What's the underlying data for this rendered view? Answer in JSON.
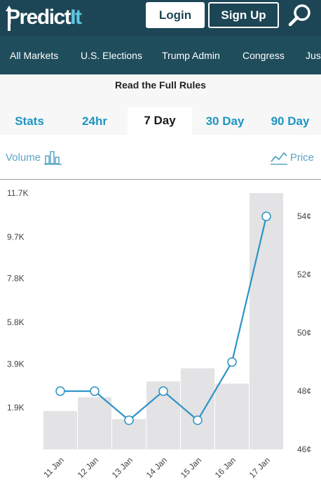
{
  "header": {
    "logo_main": "Predict",
    "logo_accent": "It",
    "login_label": "Login",
    "signup_label": "Sign Up",
    "search_icon": "search-icon"
  },
  "nav": {
    "items": [
      "All Markets",
      "U.S. Elections",
      "Trump Admin",
      "Congress",
      "Jus"
    ]
  },
  "rules": {
    "label": "Read the Full Rules"
  },
  "tabs": {
    "items": [
      "Stats",
      "24hr",
      "7 Day",
      "30 Day",
      "90 Day"
    ],
    "active": "7 Day"
  },
  "legend": {
    "volume_label": "Volume",
    "volume_icon": "bar-chart-icon",
    "price_label": "Price",
    "price_icon": "line-chart-icon"
  },
  "colors": {
    "header_bg": "#1c4655",
    "nav_bg": "#1f4d5c",
    "accent": "#1d95c2",
    "bar": "#e3e2e4",
    "line": "#2b94c6"
  },
  "chart_data": {
    "type": "bar",
    "categories": [
      "11 Jan",
      "12 Jan",
      "13 Jan",
      "14 Jan",
      "15 Jan",
      "16 Jan",
      "17 Jan"
    ],
    "volume_ticks": [
      "11.7K",
      "9.7K",
      "7.8K",
      "5.8K",
      "3.9K",
      "1.9K"
    ],
    "volume_tick_values": [
      11700,
      9700,
      7800,
      5800,
      3900,
      1900
    ],
    "volume_ylim": [
      0,
      11700
    ],
    "series": [
      {
        "name": "Volume",
        "type": "bar",
        "axis": "left",
        "values": [
          1750,
          2380,
          1380,
          3100,
          3700,
          3000,
          11700
        ]
      },
      {
        "name": "Price",
        "type": "line",
        "axis": "right",
        "values": [
          48,
          48,
          47,
          48,
          47,
          49,
          54
        ]
      }
    ],
    "price_ticks": [
      "54¢",
      "52¢",
      "50¢",
      "48¢",
      "46¢"
    ],
    "price_tick_values": [
      54,
      52,
      50,
      48,
      46
    ],
    "price_ylim": [
      46,
      54.8
    ],
    "grid": false
  }
}
